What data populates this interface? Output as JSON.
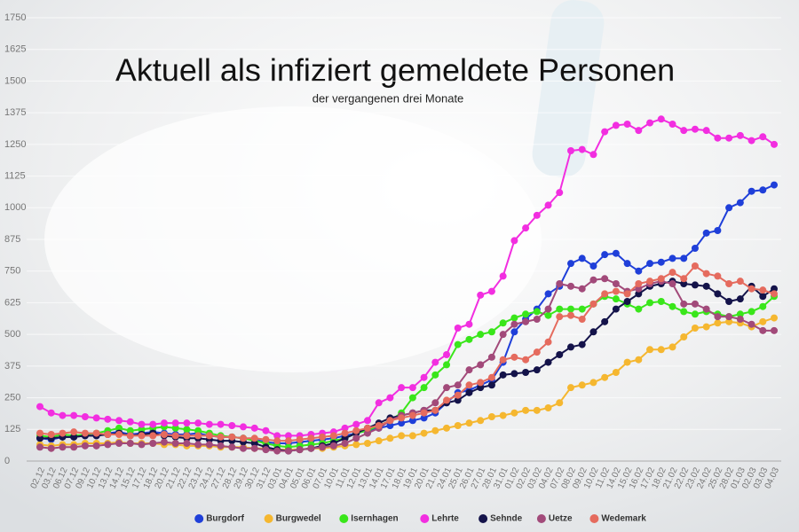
{
  "chart_data": {
    "type": "line",
    "title": "Aktuell als infiziert gemeldete Personen",
    "subtitle": "der vergangenen drei Monate",
    "categories": [
      "02.12",
      "03.12",
      "06.12",
      "07.12",
      "09.12",
      "10.12",
      "13.12",
      "14.12",
      "15.12",
      "17.12",
      "18.12",
      "20.12",
      "21.12",
      "22.12",
      "23.12",
      "24.12",
      "27.12",
      "28.12",
      "29.12",
      "30.12",
      "31.12",
      "03.01",
      "04.01",
      "05.01",
      "06.01",
      "07.01",
      "10.01",
      "11.01",
      "12.01",
      "13.01",
      "14.01",
      "17.01",
      "18.01",
      "19.01",
      "20.01",
      "21.01",
      "24.01",
      "25.01",
      "26.01",
      "27.01",
      "28.01",
      "31.01",
      "01.02",
      "02.02",
      "03.02",
      "04.02",
      "07.02",
      "08.02",
      "09.02",
      "10.02",
      "11.02",
      "14.02",
      "15.02",
      "16.02",
      "17.02",
      "18.02",
      "21.02",
      "22.02",
      "23.02",
      "24.02",
      "25.02",
      "28.02",
      "01.03",
      "02.03",
      "03.03",
      "04.03"
    ],
    "series": [
      {
        "name": "Burgdorf",
        "color": "#1f3fd9",
        "values": [
          90,
          85,
          95,
          95,
          100,
          100,
          110,
          115,
          105,
          110,
          115,
          110,
          105,
          105,
          110,
          100,
          95,
          95,
          90,
          85,
          75,
          70,
          70,
          75,
          80,
          85,
          90,
          100,
          110,
          120,
          130,
          140,
          150,
          160,
          170,
          190,
          230,
          270,
          280,
          300,
          320,
          390,
          510,
          560,
          600,
          660,
          690,
          780,
          800,
          770,
          815,
          820,
          780,
          750,
          780,
          785,
          800,
          800,
          840,
          900,
          910,
          1000,
          1020,
          1065,
          1070,
          1090
        ]
      },
      {
        "name": "Burgwedel",
        "color": "#f5b730",
        "values": [
          65,
          60,
          65,
          65,
          70,
          70,
          70,
          75,
          70,
          70,
          70,
          65,
          65,
          60,
          60,
          60,
          55,
          55,
          55,
          50,
          50,
          45,
          45,
          45,
          50,
          50,
          55,
          60,
          65,
          70,
          80,
          90,
          100,
          100,
          110,
          120,
          130,
          140,
          150,
          160,
          175,
          180,
          190,
          200,
          200,
          210,
          230,
          290,
          300,
          310,
          330,
          350,
          390,
          400,
          440,
          440,
          450,
          490,
          525,
          530,
          545,
          550,
          545,
          530,
          550,
          565
        ]
      },
      {
        "name": "Isernhagen",
        "color": "#39e61a",
        "values": [
          100,
          95,
          105,
          100,
          105,
          110,
          120,
          130,
          120,
          125,
          130,
          135,
          130,
          125,
          120,
          110,
          100,
          95,
          90,
          80,
          70,
          60,
          55,
          60,
          65,
          70,
          80,
          90,
          110,
          120,
          140,
          160,
          190,
          250,
          290,
          340,
          380,
          460,
          480,
          500,
          510,
          545,
          565,
          580,
          590,
          575,
          600,
          600,
          600,
          620,
          650,
          640,
          620,
          600,
          625,
          630,
          610,
          590,
          580,
          590,
          580,
          570,
          580,
          590,
          610,
          650
        ]
      },
      {
        "name": "Lehrte",
        "color": "#f22ee0",
        "values": [
          215,
          190,
          180,
          180,
          175,
          170,
          165,
          160,
          155,
          145,
          145,
          150,
          150,
          150,
          150,
          145,
          145,
          140,
          135,
          130,
          120,
          100,
          100,
          100,
          105,
          110,
          115,
          130,
          145,
          160,
          230,
          250,
          290,
          290,
          330,
          390,
          420,
          525,
          540,
          655,
          670,
          730,
          870,
          920,
          970,
          1010,
          1060,
          1225,
          1230,
          1210,
          1300,
          1325,
          1330,
          1305,
          1335,
          1350,
          1330,
          1305,
          1310,
          1305,
          1275,
          1275,
          1285,
          1265,
          1280,
          1250
        ]
      },
      {
        "name": "Sehnde",
        "color": "#14134a",
        "values": [
          90,
          90,
          95,
          95,
          100,
          100,
          105,
          110,
          100,
          105,
          110,
          100,
          95,
          90,
          90,
          85,
          80,
          80,
          75,
          70,
          55,
          45,
          40,
          45,
          50,
          60,
          70,
          90,
          110,
          130,
          150,
          170,
          180,
          190,
          200,
          200,
          230,
          240,
          270,
          290,
          300,
          340,
          345,
          350,
          360,
          390,
          420,
          450,
          460,
          510,
          550,
          600,
          630,
          660,
          690,
          700,
          710,
          700,
          695,
          690,
          660,
          630,
          640,
          690,
          650,
          680
        ]
      },
      {
        "name": "Uetze",
        "color": "#a24a7a",
        "values": [
          55,
          50,
          55,
          55,
          60,
          60,
          65,
          70,
          70,
          65,
          70,
          75,
          70,
          70,
          65,
          65,
          60,
          55,
          50,
          50,
          45,
          40,
          40,
          45,
          50,
          55,
          60,
          70,
          90,
          110,
          130,
          160,
          180,
          190,
          200,
          230,
          290,
          300,
          360,
          380,
          410,
          500,
          540,
          550,
          560,
          600,
          700,
          690,
          680,
          715,
          720,
          700,
          670,
          680,
          700,
          710,
          700,
          620,
          620,
          600,
          570,
          570,
          560,
          540,
          515,
          515
        ]
      },
      {
        "name": "Wedemark",
        "color": "#e56b5e",
        "values": [
          110,
          105,
          110,
          115,
          110,
          110,
          105,
          105,
          100,
          100,
          100,
          105,
          100,
          100,
          100,
          100,
          95,
          95,
          90,
          90,
          85,
          80,
          80,
          85,
          90,
          95,
          100,
          110,
          120,
          130,
          140,
          160,
          170,
          180,
          190,
          200,
          240,
          260,
          300,
          310,
          330,
          400,
          410,
          400,
          430,
          470,
          570,
          575,
          560,
          620,
          660,
          670,
          660,
          700,
          710,
          720,
          745,
          720,
          770,
          740,
          730,
          700,
          710,
          680,
          675,
          660
        ]
      }
    ],
    "ylim": [
      0,
      1750
    ],
    "yticks": [
      0,
      125,
      250,
      375,
      500,
      625,
      750,
      875,
      1000,
      1125,
      1250,
      1375,
      1500,
      1625,
      1750
    ],
    "grid": true,
    "legend": "bottom"
  }
}
